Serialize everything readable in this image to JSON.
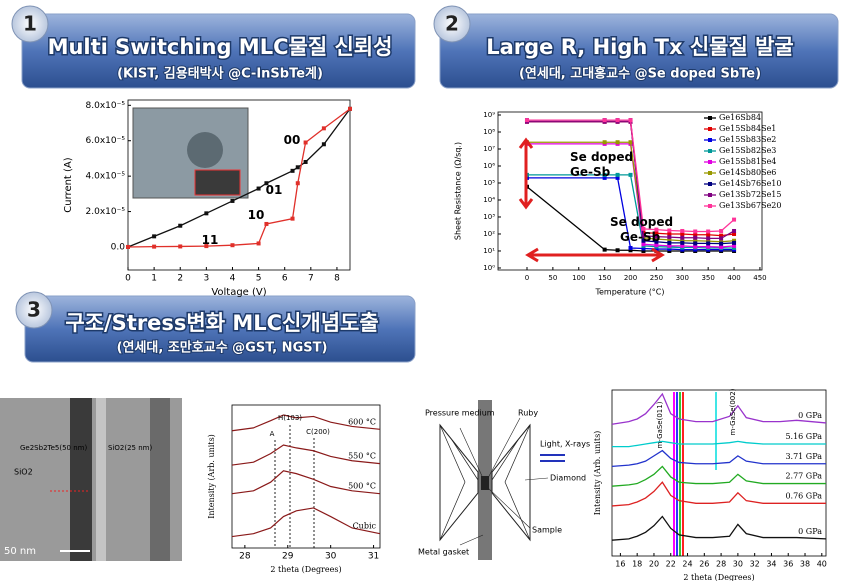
{
  "sections": [
    {
      "number": "1",
      "title": "Multi Switching MLC물질 신뢰성",
      "subtitle": "(KIST, 김용태박사 @C-InSbTe계)"
    },
    {
      "number": "2",
      "title": "Large R, High Tx 신물질 발굴",
      "subtitle": "(연세대, 고대홍교수 @Se doped SbTe)"
    },
    {
      "number": "3",
      "title": "구조/Stress변화 MLC신개념도출",
      "subtitle": "(연세대, 조만호교수 @GST, NGST)"
    }
  ],
  "chart_data": [
    {
      "type": "line",
      "x_label": "Voltage (V)",
      "y_label": "Current (A)",
      "markers": true,
      "xlim": [
        0,
        8.5
      ],
      "ylim": [
        -1.3,
        8.3
      ],
      "xticks": [
        0,
        1,
        2,
        3,
        4,
        5,
        6,
        7,
        8
      ],
      "yticks": [
        {
          "value": 0,
          "label": "0.0"
        },
        {
          "value": 2,
          "label": "2.0x10⁻⁵"
        },
        {
          "value": 4,
          "label": "4.0x10⁻⁵"
        },
        {
          "value": 6,
          "label": "6.0x10⁻⁵"
        },
        {
          "value": 8,
          "label": "8.0x10⁻⁵"
        }
      ],
      "annotations": [
        "00",
        "01",
        "10",
        "11"
      ],
      "x": [
        0,
        1,
        2,
        3,
        4,
        5,
        5.3,
        6.3,
        6.5,
        6.8,
        7.5,
        8.5
      ],
      "series": [
        {
          "color": "#111111",
          "values": [
            0,
            0.6,
            1.2,
            1.9,
            2.6,
            3.3,
            3.6,
            4.3,
            4.5,
            4.8,
            5.8,
            7.8
          ]
        },
        {
          "color": "#e0302a",
          "values": [
            0,
            0.02,
            0.03,
            0.05,
            0.1,
            0.2,
            1.3,
            1.6,
            3.6,
            5.9,
            6.7,
            7.8
          ]
        }
      ]
    },
    {
      "type": "line",
      "x_label": "Temperature (°C)",
      "y_label": "Sheet Resistance (Ω/sq.)",
      "log_y": true,
      "markers": true,
      "legend": "upper right",
      "xlim": [
        -56,
        454
      ],
      "ylim": [
        0.76,
        1500000000
      ],
      "xticks": [
        0,
        50,
        100,
        150,
        200,
        250,
        300,
        350,
        400,
        450
      ],
      "yticks": [
        {
          "value": 1,
          "label": "10⁰"
        },
        {
          "value": 10,
          "label": "10¹"
        },
        {
          "value": 100,
          "label": "10²"
        },
        {
          "value": 1000,
          "label": "10³"
        },
        {
          "value": 10000,
          "label": "10⁴"
        },
        {
          "value": 100000,
          "label": "10⁵"
        },
        {
          "value": 1000000,
          "label": "10⁶"
        },
        {
          "value": 10000000,
          "label": "10⁷"
        },
        {
          "value": 100000000,
          "label": "10⁸"
        },
        {
          "value": 1000000000,
          "label": "10⁹"
        }
      ],
      "annotations": [
        "Se doped\nGe-Sb",
        "Se doped\nGe-Sb"
      ],
      "x": [
        0,
        150,
        175,
        200,
        225,
        250,
        275,
        300,
        325,
        350,
        375,
        400
      ],
      "series": [
        {
          "name": "Ge16Sb84",
          "color": "#000000",
          "values": [
            60000,
            12,
            11,
            11,
            10,
            10,
            10,
            10,
            10,
            10,
            10,
            10
          ]
        },
        {
          "name": "Ge15Sb84Se1",
          "color": "#e00000",
          "values": [
            400000000,
            400000000,
            400000000,
            400000000,
            120,
            110,
            100,
            100,
            90,
            90,
            80,
            100
          ]
        },
        {
          "name": "Ge15Sb83Se2",
          "color": "#0000e0",
          "values": [
            200000,
            200000,
            200000,
            15,
            14,
            13,
            13,
            12,
            12,
            12,
            12,
            12
          ]
        },
        {
          "name": "Ge15Sb82Se3",
          "color": "#009999",
          "values": [
            300000,
            300000,
            300000,
            300000,
            20,
            18,
            17,
            16,
            16,
            15,
            15,
            15
          ]
        },
        {
          "name": "Ge15Sb81Se4",
          "color": "#e000e0",
          "values": [
            20000000,
            20000000,
            20000000,
            20000000,
            25,
            22,
            20,
            20,
            18,
            18,
            17,
            20
          ]
        },
        {
          "name": "Ge14Sb80Se6",
          "color": "#999900",
          "values": [
            25000000,
            25000000,
            25000000,
            25000000,
            60,
            50,
            45,
            40,
            40,
            38,
            35,
            40
          ]
        },
        {
          "name": "Ge14Sb76Se10",
          "color": "#000080",
          "values": [
            500000000,
            500000000,
            500000000,
            500000000,
            40,
            35,
            30,
            30,
            28,
            28,
            27,
            30
          ]
        },
        {
          "name": "Ge13Sb72Se15",
          "color": "#800080",
          "values": [
            400000000,
            400000000,
            400000000,
            400000000,
            80,
            70,
            65,
            60,
            60,
            55,
            55,
            150
          ]
        },
        {
          "name": "Ge13Sb67Se20",
          "color": "#ff3399",
          "values": [
            500000000,
            500000000,
            500000000,
            500000000,
            200,
            180,
            160,
            150,
            140,
            140,
            150,
            700
          ]
        }
      ]
    },
    {
      "type": "line",
      "x_label": "2 theta (Degrees)",
      "y_label": "Intensity (Arb. units)",
      "trace_labels": true,
      "xlim": [
        27.7,
        31.15
      ],
      "ylim": [
        0,
        10
      ],
      "xticks": [
        28,
        29,
        30,
        31
      ],
      "annotations": [
        "H(103)",
        "A",
        "C(200)"
      ],
      "x": [
        27.7,
        28.2,
        28.6,
        28.9,
        29.2,
        29.6,
        30,
        30.5,
        31.15
      ],
      "series": [
        {
          "name": "600 °C",
          "color": "#8a1a1a",
          "values": [
            8.2,
            8.4,
            8.9,
            9.3,
            9.1,
            9.2,
            8.8,
            8.5,
            8.3
          ]
        },
        {
          "name": "550 °C",
          "color": "#8a1a1a",
          "values": [
            5.8,
            6,
            6.6,
            7.2,
            7,
            6.8,
            6.4,
            6.1,
            5.9
          ]
        },
        {
          "name": "500 °C",
          "color": "#8a1a1a",
          "values": [
            3.8,
            4,
            4.6,
            5.4,
            5.2,
            4.8,
            4.3,
            4,
            3.8
          ]
        },
        {
          "name": "Cubic",
          "color": "#8a1a1a",
          "values": [
            0.8,
            1,
            1.4,
            2.2,
            2.6,
            2.8,
            2.2,
            1.4,
            1
          ]
        }
      ]
    },
    {
      "type": "line",
      "x_label": "2 theta (Degrees)",
      "y_label": "Intensity (Arb. units)",
      "trace_labels": true,
      "xlim": [
        15,
        40.5
      ],
      "ylim": [
        0,
        12.6
      ],
      "xticks": [
        16,
        18,
        20,
        22,
        24,
        26,
        28,
        30,
        32,
        34,
        36,
        38,
        40
      ],
      "annotations": [
        "m-GaSe(011)",
        "m-GaSe(002)"
      ],
      "x": [
        15,
        17,
        18,
        19,
        20,
        21,
        22,
        23,
        25,
        27,
        29,
        30,
        31,
        33,
        35,
        37,
        40.5
      ],
      "series": [
        {
          "name": "0 GPa",
          "color": "#9933cc",
          "values": [
            10,
            10.2,
            10.4,
            10.8,
            11.5,
            12.3,
            10.8,
            10.4,
            10.2,
            10.2,
            10.6,
            11.4,
            10.5,
            10.2,
            10.2,
            10.3,
            10.1
          ]
        },
        {
          "name": "5.16 GPa",
          "color": "#00cccc",
          "values": [
            8.3,
            8.3,
            8.4,
            8.5,
            8.6,
            8.7,
            8.6,
            8.5,
            8.5,
            8.5,
            8.6,
            8.7,
            8.6,
            8.5,
            8.5,
            8.5,
            8.5
          ]
        },
        {
          "name": "3.71 GPa",
          "color": "#2233cc",
          "values": [
            6.8,
            6.9,
            7,
            7.2,
            7.6,
            8,
            7.4,
            7.1,
            7,
            7,
            7.1,
            7.6,
            7.2,
            7,
            7,
            7,
            7
          ]
        },
        {
          "name": "2.77 GPa",
          "color": "#22aa22",
          "values": [
            5.3,
            5.4,
            5.5,
            5.8,
            6.2,
            6.8,
            6,
            5.6,
            5.5,
            5.5,
            5.6,
            6.2,
            5.7,
            5.5,
            5.5,
            5.5,
            5.5
          ]
        },
        {
          "name": "0.76 GPa",
          "color": "#dd2222",
          "values": [
            3.8,
            3.9,
            4.1,
            4.4,
            4.9,
            5.6,
            4.6,
            4.2,
            4,
            4,
            4.1,
            4.8,
            4.2,
            4,
            4,
            4,
            4
          ]
        },
        {
          "name": "0 GPa",
          "color": "#111111",
          "values": [
            1.2,
            1.3,
            1.5,
            1.8,
            2.3,
            3,
            2.1,
            1.6,
            1.4,
            1.4,
            1.5,
            2.4,
            1.7,
            1.4,
            1.4,
            1.4,
            1.3
          ]
        }
      ]
    }
  ],
  "tem_image": {
    "labels": [
      "Ge2Sb2Te5(50 nm)",
      "SiO2(25 nm)",
      "SiO2",
      "50 nm"
    ]
  },
  "anvil_diagram": {
    "labels": [
      "Pressure medium",
      "Ruby",
      "Light, X-rays",
      "Diamond",
      "Sample",
      "Metal gasket"
    ]
  }
}
